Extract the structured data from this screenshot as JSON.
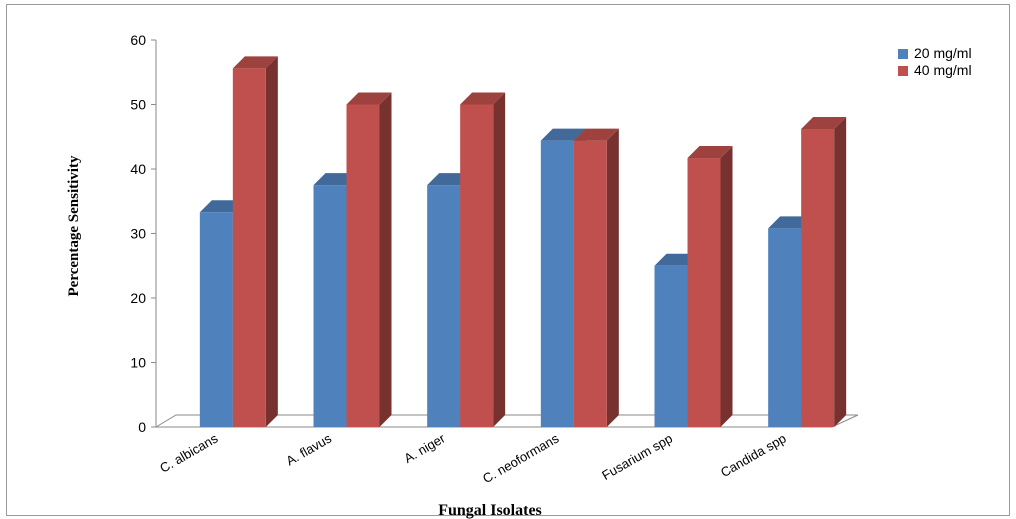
{
  "chart_data": {
    "type": "bar",
    "xlabel": "Fungal Isolates",
    "ylabel": "Percentage  Sensitivity",
    "ylim": [
      0,
      60
    ],
    "yticks": [
      0,
      10,
      20,
      30,
      40,
      50,
      60
    ],
    "categories": [
      "C. albicans",
      "A. flavus",
      "A. niger",
      "C. neoformans",
      "Fusarium spp",
      "Candida spp"
    ],
    "series": [
      {
        "name": "20 mg/ml",
        "color": "#4f81bd",
        "values": [
          33.3,
          37.5,
          37.5,
          44.4,
          25.0,
          30.8
        ]
      },
      {
        "name": "40 mg/ml",
        "color": "#c0504d",
        "values": [
          55.6,
          50.0,
          50.0,
          44.4,
          41.7,
          46.2
        ]
      }
    ],
    "legend_position": "top-right",
    "grid": false
  }
}
